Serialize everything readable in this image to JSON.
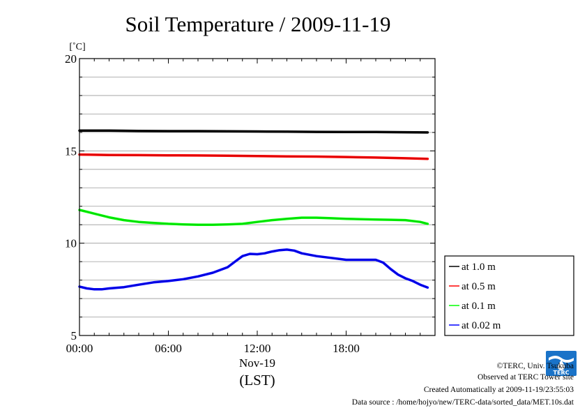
{
  "chart_data": {
    "type": "line",
    "title": "Soil Temperature / 2009-11-19",
    "unit_label": "[˚C]",
    "ylim": [
      5,
      20
    ],
    "y_ticks": [
      "5",
      "10",
      "15",
      "20"
    ],
    "y_tick_values": [
      5,
      10,
      15,
      20
    ],
    "x_range_hours": [
      0,
      24
    ],
    "x_ticks": [
      "00:00",
      "06:00",
      "12:00",
      "18:00"
    ],
    "x_tick_hours": [
      0,
      6,
      12,
      18
    ],
    "x_date_label": "Nov-19",
    "x_axis_label": "(LST)",
    "grid": true,
    "legend_position": "right",
    "series": [
      {
        "name": "at 1.0 m",
        "color": "#000000",
        "x": [
          0,
          2,
          4,
          6,
          8,
          10,
          12,
          14,
          16,
          18,
          20,
          22,
          23.5
        ],
        "y": [
          16.1,
          16.1,
          16.08,
          16.07,
          16.07,
          16.06,
          16.05,
          16.04,
          16.03,
          16.02,
          16.02,
          16.01,
          16.0
        ]
      },
      {
        "name": "at 0.5 m",
        "color": "#ff0000",
        "x": [
          0,
          2,
          4,
          6,
          8,
          10,
          12,
          14,
          16,
          18,
          20,
          22,
          23.5
        ],
        "y": [
          14.8,
          14.78,
          14.77,
          14.76,
          14.75,
          14.74,
          14.72,
          14.7,
          14.69,
          14.67,
          14.64,
          14.6,
          14.57
        ]
      },
      {
        "name": "at 0.1 m",
        "color": "#00ff00",
        "x": [
          0,
          1,
          2,
          3,
          4,
          5,
          6,
          7,
          8,
          9,
          10,
          11,
          12,
          13,
          14,
          15,
          16,
          17,
          18,
          19,
          20,
          21,
          22,
          23,
          23.5
        ],
        "y": [
          11.8,
          11.6,
          11.4,
          11.25,
          11.15,
          11.1,
          11.05,
          11.02,
          11.0,
          11.0,
          11.02,
          11.05,
          11.15,
          11.25,
          11.32,
          11.38,
          11.38,
          11.35,
          11.32,
          11.3,
          11.28,
          11.27,
          11.25,
          11.15,
          11.05
        ]
      },
      {
        "name": "at 0.02 m",
        "color": "#0000ff",
        "x": [
          0,
          0.5,
          1,
          1.5,
          2,
          3,
          4,
          5,
          6,
          7,
          8,
          9,
          10,
          10.5,
          11,
          11.5,
          12,
          12.5,
          13,
          13.5,
          14,
          14.5,
          15,
          16,
          17,
          18,
          19,
          20,
          20.5,
          21,
          21.5,
          22,
          22.5,
          23,
          23.5
        ],
        "y": [
          7.65,
          7.55,
          7.5,
          7.5,
          7.55,
          7.62,
          7.75,
          7.88,
          7.95,
          8.05,
          8.2,
          8.4,
          8.7,
          9.0,
          9.3,
          9.42,
          9.4,
          9.45,
          9.55,
          9.62,
          9.65,
          9.6,
          9.45,
          9.3,
          9.2,
          9.1,
          9.1,
          9.1,
          8.95,
          8.6,
          8.3,
          8.1,
          7.95,
          7.75,
          7.6
        ]
      }
    ]
  },
  "footer": {
    "line1": "©TERC, Univ. Tsukuba",
    "line2": "Observed at TERC Tower site",
    "line3": "Created Automatically at 2009-11-19/23:55:03",
    "line4": "Data source : /home/hojyo/new/TERC-data/sorted_data/MET.10s.dat"
  },
  "logo": {
    "text": "TERC",
    "color": "#1a73c8"
  }
}
